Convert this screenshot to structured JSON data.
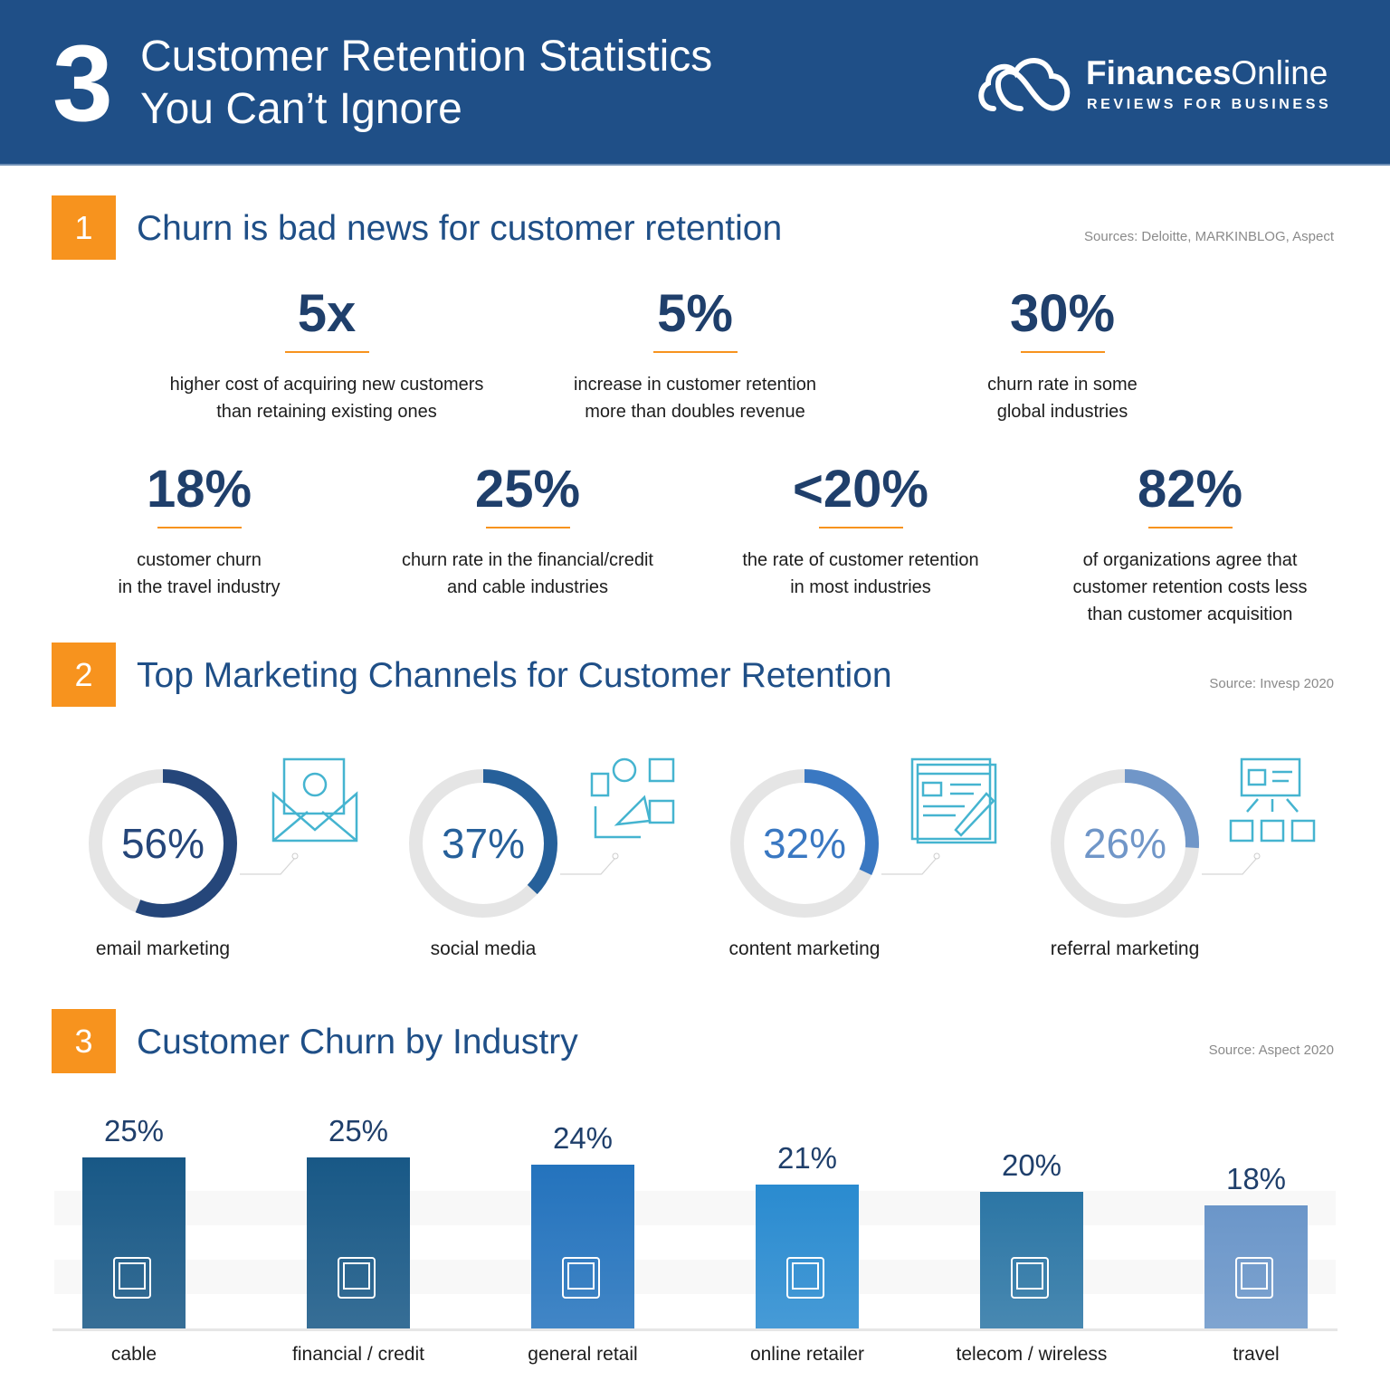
{
  "header": {
    "number": "3",
    "title_line1": "Customer Retention Statistics",
    "title_line2": "You Can’t Ignore",
    "logo_bold": "Finances",
    "logo_light": "Online",
    "logo_tagline": "REVIEWS FOR BUSINESS",
    "logo_icon": "cloud-infinity-icon"
  },
  "colors": {
    "header_bg": "#1f4f87",
    "accent": "#f7931e",
    "title": "#1f4f87",
    "ring_track": "#e5e5e5",
    "icon_line": "#45b4d0"
  },
  "sections": [
    {
      "number": "1",
      "title": "Churn is bad news for customer retention",
      "source": "Sources: Deloitte, MARKINBLOG, Aspect",
      "stats": [
        {
          "value": "5x",
          "line1": "higher cost of acquiring new customers",
          "line2": "than retaining existing ones"
        },
        {
          "value": "5%",
          "line1": "increase in customer retention",
          "line2": "more than doubles revenue"
        },
        {
          "value": "30%",
          "line1": "churn rate in some",
          "line2": "global industries"
        },
        {
          "value": "18%",
          "line1": "customer churn",
          "line2": "in the travel industry"
        },
        {
          "value": "25%",
          "line1": "churn rate in the financial/credit",
          "line2": "and cable industries"
        },
        {
          "value": "<20%",
          "line1": "the rate of customer retention",
          "line2": "in most industries"
        },
        {
          "value": "82%",
          "line1": "of organizations agree that",
          "line2": "customer retention costs less",
          "line3": "than customer acquisition"
        }
      ]
    },
    {
      "number": "2",
      "title": "Top Marketing Channels for Customer Retention",
      "source": "Source:  Invesp 2020"
    },
    {
      "number": "3",
      "title": "Customer Churn by Industry",
      "source": "Source: Aspect 2020"
    }
  ],
  "chart_data": [
    {
      "type": "pie",
      "style": "donut",
      "categories": [
        "email marketing",
        "social media",
        "content marketing",
        "referral marketing"
      ],
      "values": [
        56,
        37,
        32,
        26
      ],
      "labels": [
        "56%",
        "37%",
        "32%",
        "26%"
      ],
      "colors": [
        "#25467a",
        "#26609a",
        "#3a78c2",
        "#7096c8"
      ],
      "icons": [
        "email-icon",
        "social-media-megaphone-icon",
        "content-article-icon",
        "referral-network-icon"
      ]
    },
    {
      "type": "bar",
      "categories": [
        "cable",
        "financial / credit",
        "general retail",
        "online retailer",
        "telecom / wireless",
        "travel"
      ],
      "values": [
        25,
        25,
        24,
        21,
        20,
        18
      ],
      "labels": [
        "25%",
        "25%",
        "24%",
        "21%",
        "20%",
        "18%"
      ],
      "ylim": [
        0,
        25
      ],
      "colors": [
        "#185886",
        "#185886",
        "#2473bd",
        "#2a8bd0",
        "#2c76a5",
        "#6b96c9"
      ],
      "icons": [
        "tv-icon",
        "money-bag-icon",
        "shopping-bags-icon",
        "online-cart-monitor-icon",
        "smartphone-icon",
        "passport-icon"
      ]
    }
  ]
}
